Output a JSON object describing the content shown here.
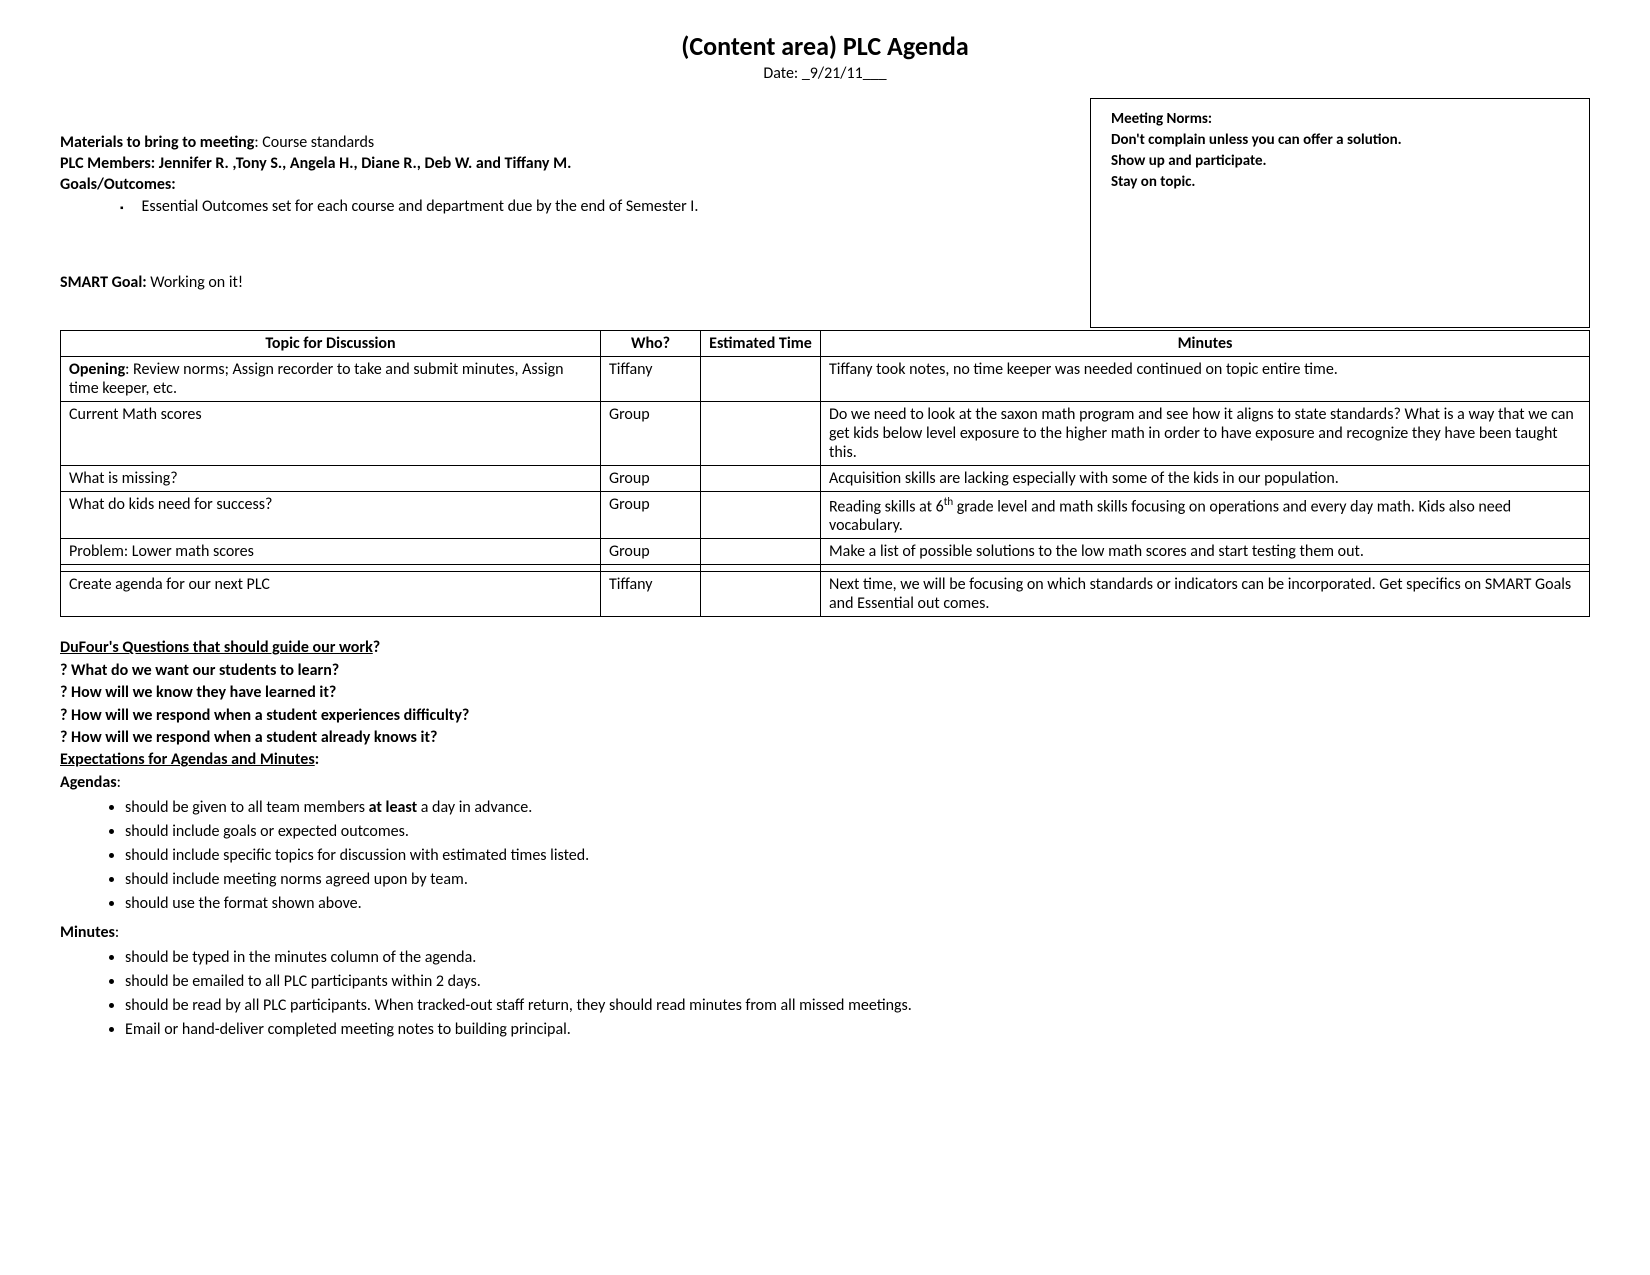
{
  "title": "(Content area) PLC Agenda",
  "date_label": "Date: _",
  "date_value": "9/21/11",
  "date_suffix": "___",
  "norms": {
    "heading": "Meeting Norms:",
    "lines": [
      "Don't complain unless you can offer a solution.",
      "Show up and participate.",
      "Stay on topic."
    ]
  },
  "materials_label": "Materials to bring to meeting",
  "materials_value": ": Course standards",
  "members_label": "PLC Members:  ",
  "members_value": "Jennifer R. ,Tony S., Angela H., Diane R., Deb W. and Tiffany M.",
  "goals_label": "Goals/Outcomes:",
  "goals_bullet": "Essential Outcomes set for each course and department due by the end of Semester I.",
  "smart_label": "SMART Goal:",
  "smart_value": "  Working on it!",
  "table": {
    "headers": [
      "Topic for Discussion",
      "Who?",
      "Estimated Time",
      "Minutes"
    ],
    "rows": [
      {
        "topic_bold": "Opening",
        "topic_rest": ": Review norms; Assign recorder to take and submit minutes, Assign time keeper, etc.",
        "who": "Tiffany",
        "time": "",
        "minutes": "Tiffany took notes, no time keeper was needed continued on topic entire time."
      },
      {
        "topic_bold": "",
        "topic_rest": "Current Math scores",
        "who": "Group",
        "time": "",
        "minutes": "Do we need to look at the saxon math program and see how it aligns to state standards?  What is a way that we can get kids below level exposure to the higher math in order to have exposure and recognize they have been taught this."
      },
      {
        "topic_bold": "",
        "topic_rest": "What is missing?",
        "who": "Group",
        "time": "",
        "minutes": "Acquisition skills are lacking especially with some of the kids in our population."
      },
      {
        "topic_bold": "",
        "topic_rest": "What do kids need for success?",
        "who": "Group",
        "time": "",
        "minutes_html": "Reading skills at 6<sup>th</sup> grade level and math skills focusing on operations and every day math. Kids also need vocabulary."
      },
      {
        "topic_bold": "",
        "topic_rest": "Problem: Lower math scores",
        "who": "Group",
        "time": "",
        "minutes": "Make a list of possible solutions to the low math scores and start testing them out."
      },
      {
        "topic_bold": "",
        "topic_rest": "",
        "who": "",
        "time": "",
        "minutes": ""
      },
      {
        "topic_bold": "",
        "topic_rest": "Create agenda for our next PLC",
        "who": "Tiffany",
        "time": "",
        "minutes": "Next time, we will be focusing on which standards or indicators can be incorporated.   Get specifics on SMART Goals and Essential out comes."
      }
    ]
  },
  "dufour_title": "DuFour's Questions that should guide our work",
  "dufour_q_suffix": "?",
  "dufour_questions": [
    "? What do we want our students to learn?",
    "? How will we know they have learned it?",
    "? How will we respond when a student experiences difficulty?",
    "? How will we respond when a student already knows it?"
  ],
  "expectations_title": "Expectations for Agendas and Minutes",
  "expectations_colon": ":",
  "agendas_label": "Agendas",
  "agendas_colon": ":",
  "agendas_bullets": [
    {
      "pre": "should be given to all team members ",
      "bold": "at least",
      "post": " a day in advance."
    },
    {
      "pre": "should include goals or expected outcomes.",
      "bold": "",
      "post": ""
    },
    {
      "pre": "should include specific topics for discussion with estimated times listed.",
      "bold": "",
      "post": ""
    },
    {
      "pre": "should include meeting norms agreed upon by team.",
      "bold": "",
      "post": ""
    },
    {
      "pre": "should use the format shown above.",
      "bold": "",
      "post": ""
    }
  ],
  "minutes_label": "Minutes",
  "minutes_colon": ":",
  "minutes_bullets": [
    "should be typed in the minutes column of the agenda.",
    "should be emailed to all PLC participants within 2 days.",
    "should be read by all PLC participants.  When tracked-out staff return, they should read minutes from all missed meetings.",
    "Email or hand-deliver completed meeting notes to building principal."
  ]
}
